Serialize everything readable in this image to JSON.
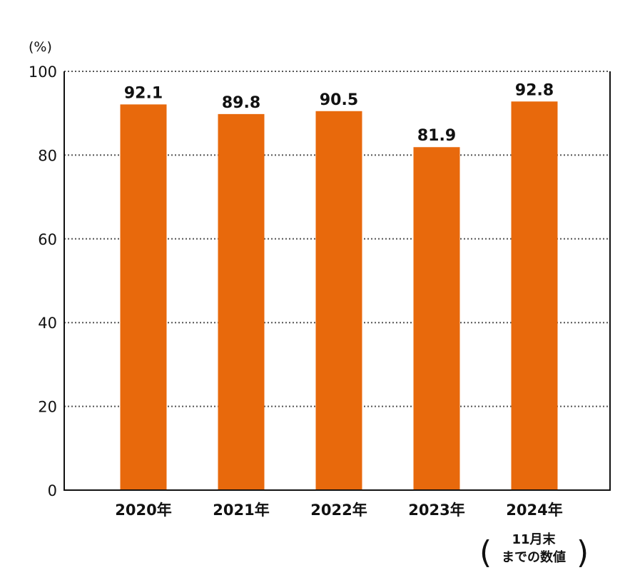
{
  "chart_data": {
    "type": "bar",
    "unit_label": "(%)",
    "categories": [
      "2020年",
      "2021年",
      "2022年",
      "2023年",
      "2024年"
    ],
    "values": [
      92.1,
      89.8,
      90.5,
      81.9,
      92.8
    ],
    "value_labels": [
      "92.1",
      "89.8",
      "90.5",
      "81.9",
      "92.8"
    ],
    "yticks": [
      "0",
      "20",
      "40",
      "60",
      "80",
      "100"
    ],
    "ylim": [
      0,
      100
    ],
    "grid": "dotted horizontal",
    "bar_color": "#E8690C",
    "note": {
      "category_index": 4,
      "open_paren": "(",
      "line1": "11月末",
      "line2": "までの数値",
      "close_paren": ")"
    }
  }
}
